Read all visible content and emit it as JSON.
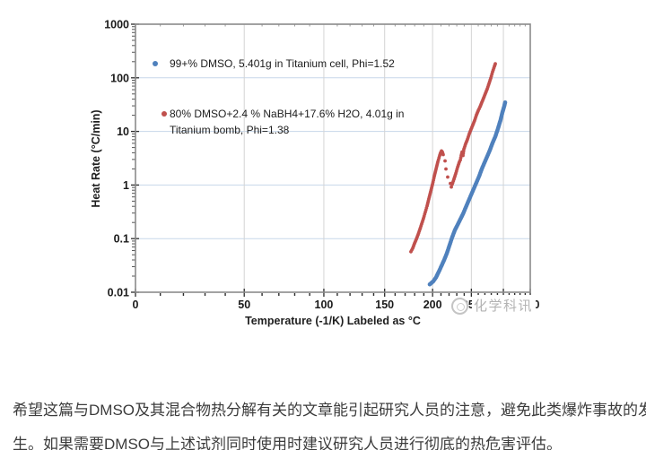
{
  "watermark": {
    "logo": "circle-logo",
    "text": "化学科讯"
  },
  "caption": {
    "lines": [
      "希望这篇与DMSO及其混合物热分解有关的文章能引起研究人员的注意，避免此类爆炸事故的发",
      "生。如果需要DMSO与上述试剂同时使用时建议研究人员进行彻底的热危害评估。"
    ]
  },
  "chart_data": {
    "type": "scatter",
    "title": "",
    "xlabel": "Temperature (-1/K) Labeled as °C",
    "ylabel": "Heat Rate (°C/min)",
    "x_scale": "reciprocal-absolute-temperature",
    "xlim": [
      0,
      350
    ],
    "x_ticks": [
      0,
      50,
      100,
      150,
      200,
      250,
      300,
      350
    ],
    "x_minor_step": 10,
    "y_scale": "log10",
    "ylim": [
      0.01,
      1000
    ],
    "y_ticks": [
      1000,
      100,
      10,
      1,
      0.1,
      0.01
    ],
    "y_tick_labels": [
      "1000",
      "100",
      "10",
      "1",
      "0.1",
      "0.01"
    ],
    "grid": true,
    "legend_position": "top-left-inside",
    "colors": {
      "series1": "#4f81bd",
      "series2": "#c0504d",
      "h_grid": "#c7d7ea",
      "v_grid": "#d4d4d4",
      "frame": "#8a8a8a",
      "tick": "#2b2b2b"
    },
    "series": [
      {
        "name": "99+% DMSO, 5.401g in Titanium cell, Phi=1.52",
        "legend_lines": [
          "99+% DMSO, 5.401g in Titanium cell, Phi=1.52"
        ],
        "color": "#4f81bd",
        "marker": "dot",
        "segments": [
          {
            "label": "exotherm",
            "dense": true,
            "points": [
              [
                196.7,
                0.014
              ],
              [
                198.8,
                0.015
              ],
              [
                200.9,
                0.016
              ],
              [
                204.1,
                0.019
              ],
              [
                207.3,
                0.024
              ],
              [
                210.6,
                0.031
              ],
              [
                213.9,
                0.04
              ],
              [
                217.2,
                0.053
              ],
              [
                220.6,
                0.075
              ],
              [
                224.0,
                0.106
              ],
              [
                227.5,
                0.144
              ],
              [
                231.1,
                0.181
              ],
              [
                234.7,
                0.229
              ],
              [
                238.3,
                0.288
              ],
              [
                242.0,
                0.378
              ],
              [
                245.7,
                0.495
              ],
              [
                249.5,
                0.649
              ],
              [
                253.4,
                0.85
              ],
              [
                257.3,
                1.11
              ],
              [
                261.3,
                1.46
              ],
              [
                265.3,
                1.99
              ],
              [
                269.4,
                2.61
              ],
              [
                273.6,
                3.42
              ],
              [
                277.8,
                4.48
              ],
              [
                282.1,
                6.1
              ],
              [
                286.5,
                8.0
              ],
              [
                290.9,
                11.3
              ],
              [
                295.4,
                16.6
              ],
              [
                298.4,
                22.7
              ],
              [
                301.5,
                29.7
              ],
              [
                303.0,
                34.7
              ]
            ]
          }
        ]
      },
      {
        "name": "80% DMSO+2.4 % NaBH4+17.6% H2O, 4.01g in Titanium bomb, Phi=1.38",
        "legend_lines": [
          "80% DMSO+2.4 % NaBH4+17.6% H2O, 4.01g in",
          "Titanium bomb, Phi=1.38"
        ],
        "color": "#c0504d",
        "marker": "dot",
        "segments": [
          {
            "label": "first-exotherm",
            "dense": true,
            "points": [
              [
                176.0,
                0.057
              ],
              [
                177.9,
                0.066
              ],
              [
                179.8,
                0.081
              ],
              [
                181.8,
                0.098
              ],
              [
                183.7,
                0.119
              ],
              [
                185.7,
                0.15
              ],
              [
                187.6,
                0.188
              ],
              [
                189.6,
                0.238
              ],
              [
                191.6,
                0.311
              ],
              [
                193.7,
                0.408
              ],
              [
                195.7,
                0.556
              ],
              [
                197.8,
                0.757
              ],
              [
                199.9,
                1.03
              ],
              [
                202.0,
                1.46
              ],
              [
                204.1,
                1.99
              ],
              [
                206.2,
                2.71
              ],
              [
                208.4,
                3.55
              ],
              [
                209.5,
                3.99
              ],
              [
                210.6,
                4.31
              ],
              [
                211.6,
                4.14
              ],
              [
                212.7,
                3.69
              ]
            ]
          },
          {
            "label": "rate-drop",
            "dense": false,
            "points": [
              [
                215.0,
                2.82
              ],
              [
                216.1,
                1.99
              ],
              [
                218.3,
                1.41
              ],
              [
                221.7,
                1.07
              ],
              [
                222.9,
                0.92
              ]
            ]
          },
          {
            "label": "main-exotherm",
            "dense": true,
            "points": [
              [
                224.0,
                1.03
              ],
              [
                226.4,
                1.3
              ],
              [
                228.7,
                1.64
              ],
              [
                231.1,
                2.15
              ],
              [
                233.5,
                2.71
              ],
              [
                234.7,
                2.93
              ],
              [
                235.9,
                3.55
              ],
              [
                237.1,
                4.14
              ],
              [
                238.3,
                3.55
              ],
              [
                239.5,
                4.65
              ],
              [
                242.0,
                5.87
              ],
              [
                244.5,
                7.12
              ],
              [
                247.0,
                8.98
              ],
              [
                249.5,
                10.9
              ],
              [
                252.1,
                13.2
              ],
              [
                254.7,
                16.0
              ],
              [
                257.3,
                20.2
              ],
              [
                260.0,
                24.5
              ],
              [
                262.6,
                28.6
              ],
              [
                265.3,
                34.7
              ],
              [
                268.1,
                42.1
              ],
              [
                270.8,
                51.1
              ],
              [
                273.6,
                61.9
              ],
              [
                276.4,
                78.1
              ],
              [
                279.2,
                98.5
              ],
              [
                282.1,
                129
              ],
              [
                285.0,
                163
              ],
              [
                286.5,
                183
              ]
            ]
          }
        ]
      }
    ]
  }
}
